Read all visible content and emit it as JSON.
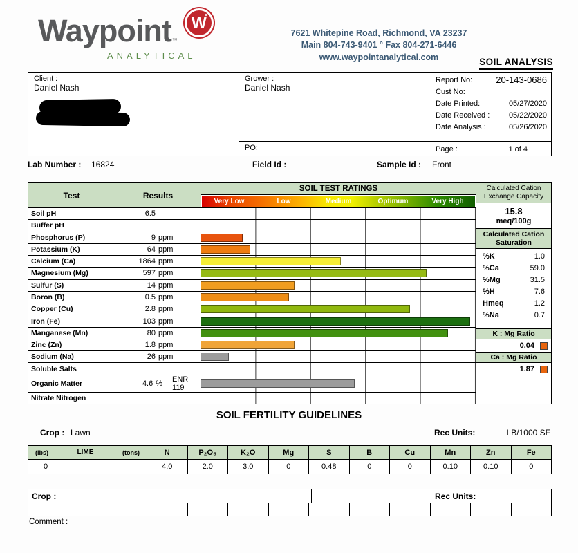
{
  "header": {
    "logo_text": "Waypoint",
    "logo_tm": "™",
    "logo_badge": "W",
    "logo_badge_degree": "°",
    "logo_sub": "ANALYTICAL",
    "address_line1": "7621 Whitepine Road, Richmond, VA 23237",
    "address_line2": "Main 804-743-9401 ° Fax 804-271-6446",
    "address_line3": "www.waypointanalytical.com",
    "report_title": "SOIL ANALYSIS",
    "brand_red": "#c1272d",
    "brand_green": "#5d8d4b",
    "table_header_green": "#cbdec3"
  },
  "info": {
    "client_label": "Client :",
    "client_name": "Daniel Nash",
    "grower_label": "Grower :",
    "grower_name": "Daniel Nash",
    "po_label": "PO:",
    "report_no_label": "Report No:",
    "report_no": "20-143-0686",
    "cust_no_label": "Cust No:",
    "cust_no": "",
    "date_printed_label": "Date Printed:",
    "date_printed": "05/27/2020",
    "date_received_label": "Date Received :",
    "date_received": "05/22/2020",
    "date_analysis_label": "Date Analysis :",
    "date_analysis": "05/26/2020",
    "page_label": "Page :",
    "page_value": "1 of 4"
  },
  "sample": {
    "lab_number_label": "Lab Number :",
    "lab_number": "16824",
    "field_id_label": "Field Id :",
    "field_id": "",
    "sample_id_label": "Sample Id :",
    "sample_id": "Front"
  },
  "soil_table": {
    "test_header": "Test",
    "results_header": "Results",
    "ratings_header": "SOIL TEST RATINGS",
    "rating_zones": [
      "Very Low",
      "Low",
      "Medium",
      "Optimum",
      "Very High"
    ],
    "rows": [
      {
        "test": "Soil pH",
        "num": "6.5",
        "unit": "",
        "bar_pct": 0,
        "bar_color": ""
      },
      {
        "test": "Buffer pH",
        "num": "",
        "unit": "",
        "bar_pct": 0,
        "bar_color": ""
      },
      {
        "test": "Phosphorus (P)",
        "num": "9",
        "unit": "ppm",
        "bar_pct": 15,
        "bar_color": "#e8540e"
      },
      {
        "test": "Potassium (K)",
        "num": "64",
        "unit": "ppm",
        "bar_pct": 18,
        "bar_color": "#ef7d10"
      },
      {
        "test": "Calcium (Ca)",
        "num": "1864",
        "unit": "ppm",
        "bar_pct": 51,
        "bar_color": "#f5ee35"
      },
      {
        "test": "Magnesium (Mg)",
        "num": "597",
        "unit": "ppm",
        "bar_pct": 82,
        "bar_color": "#95ba14"
      },
      {
        "test": "Sulfur (S)",
        "num": "14",
        "unit": "ppm",
        "bar_pct": 34,
        "bar_color": "#f19d20"
      },
      {
        "test": "Boron (B)",
        "num": "0.5",
        "unit": "ppm",
        "bar_pct": 32,
        "bar_color": "#ee8d16"
      },
      {
        "test": "Copper (Cu)",
        "num": "2.8",
        "unit": "ppm",
        "bar_pct": 76,
        "bar_color": "#90b80e"
      },
      {
        "test": "Iron (Fe)",
        "num": "103",
        "unit": "ppm",
        "bar_pct": 98,
        "bar_color": "#1c6f10"
      },
      {
        "test": "Manganese (Mn)",
        "num": "80",
        "unit": "ppm",
        "bar_pct": 90,
        "bar_color": "#429110"
      },
      {
        "test": "Zinc (Zn)",
        "num": "1.8",
        "unit": "ppm",
        "bar_pct": 34,
        "bar_color": "#f0a438"
      },
      {
        "test": "Sodium (Na)",
        "num": "26",
        "unit": "ppm",
        "bar_pct": 10,
        "bar_color": "#9c9c9c"
      },
      {
        "test": "Soluble Salts",
        "num": "",
        "unit": "",
        "bar_pct": 0,
        "bar_color": ""
      },
      {
        "test": "Organic Matter",
        "num": "4.6",
        "unit": "%",
        "extra": "ENR 119",
        "bar_pct": 56,
        "bar_color": "#9c9c9c"
      },
      {
        "test": "Nitrate Nitrogen",
        "num": "",
        "unit": "",
        "bar_pct": 0,
        "bar_color": ""
      }
    ]
  },
  "cec_panel": {
    "cec_header": "Calculated Cation Exchange Capacity",
    "cec_value": "15.8",
    "cec_units": "meq/100g",
    "saturation_header": "Calculated Cation Saturation",
    "saturation_rows": [
      {
        "label": "%K",
        "value": "1.0"
      },
      {
        "label": "%Ca",
        "value": "59.0"
      },
      {
        "label": "%Mg",
        "value": "31.5"
      },
      {
        "label": "%H",
        "value": "7.6"
      },
      {
        "label": "Hmeq",
        "value": "1.2"
      },
      {
        "label": "%Na",
        "value": "0.7"
      }
    ],
    "k_mg_ratio_header": "K : Mg Ratio",
    "k_mg_ratio": "0.04",
    "ca_mg_ratio_header": "Ca : Mg Ratio",
    "ca_mg_ratio": "1.87",
    "swatch_color": "#e8650e"
  },
  "fertility": {
    "title": "SOIL FERTILITY GUIDELINES",
    "crop_label": "Crop :",
    "crop_value": "Lawn",
    "rec_units_label": "Rec Units:",
    "rec_units_value": "LB/1000 SF",
    "lime_header": {
      "lbs": "(lbs)",
      "lime": "LIME",
      "tons": "(tons)"
    },
    "columns": [
      "N",
      "P₂O₅",
      "K₂O",
      "Mg",
      "S",
      "B",
      "Cu",
      "Mn",
      "Zn",
      "Fe"
    ],
    "lime_value": "0",
    "values": [
      "4.0",
      "2.0",
      "3.0",
      "0",
      "0.48",
      "0",
      "0",
      "0.10",
      "0.10",
      "0"
    ],
    "crop2_label": "Crop :",
    "rec_units2_label": "Rec Units:"
  },
  "comment_label": "Comment :"
}
